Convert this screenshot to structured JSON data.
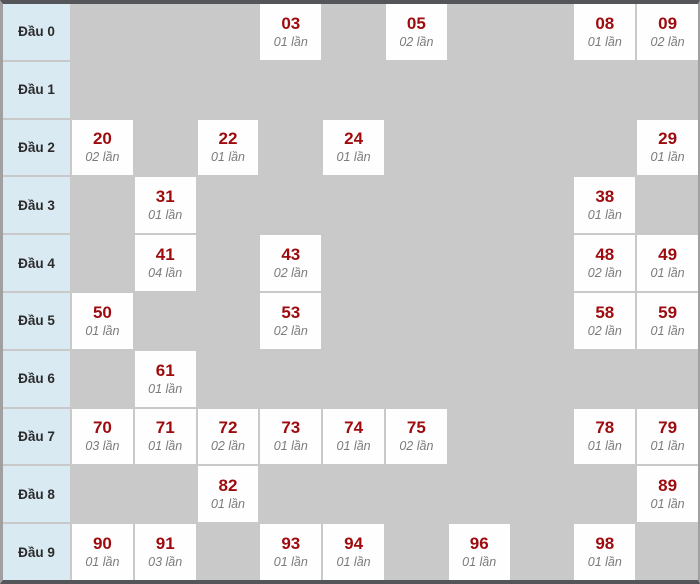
{
  "table": {
    "row_label_prefix": "Đầu",
    "frequency_suffix": "lần",
    "unit_columns": 10,
    "rows": [
      {
        "label": "Đầu 0",
        "cells": [
          {
            "col": 3,
            "number": "03",
            "freq": "01 lần"
          },
          {
            "col": 5,
            "number": "05",
            "freq": "02 lần"
          },
          {
            "col": 8,
            "number": "08",
            "freq": "01 lần"
          },
          {
            "col": 9,
            "number": "09",
            "freq": "02 lần"
          }
        ]
      },
      {
        "label": "Đầu 1",
        "cells": []
      },
      {
        "label": "Đầu 2",
        "cells": [
          {
            "col": 0,
            "number": "20",
            "freq": "02 lần"
          },
          {
            "col": 2,
            "number": "22",
            "freq": "01 lần"
          },
          {
            "col": 4,
            "number": "24",
            "freq": "01 lần"
          },
          {
            "col": 9,
            "number": "29",
            "freq": "01 lần"
          }
        ]
      },
      {
        "label": "Đầu 3",
        "cells": [
          {
            "col": 1,
            "number": "31",
            "freq": "01 lần"
          },
          {
            "col": 8,
            "number": "38",
            "freq": "01 lần"
          }
        ]
      },
      {
        "label": "Đầu 4",
        "cells": [
          {
            "col": 1,
            "number": "41",
            "freq": "04 lần"
          },
          {
            "col": 3,
            "number": "43",
            "freq": "02 lần"
          },
          {
            "col": 8,
            "number": "48",
            "freq": "02 lần"
          },
          {
            "col": 9,
            "number": "49",
            "freq": "01 lần"
          }
        ]
      },
      {
        "label": "Đầu 5",
        "cells": [
          {
            "col": 0,
            "number": "50",
            "freq": "01 lần"
          },
          {
            "col": 3,
            "number": "53",
            "freq": "02 lần"
          },
          {
            "col": 8,
            "number": "58",
            "freq": "02 lần"
          },
          {
            "col": 9,
            "number": "59",
            "freq": "01 lần"
          }
        ]
      },
      {
        "label": "Đầu 6",
        "cells": [
          {
            "col": 1,
            "number": "61",
            "freq": "01 lần"
          }
        ]
      },
      {
        "label": "Đầu 7",
        "cells": [
          {
            "col": 0,
            "number": "70",
            "freq": "03 lần"
          },
          {
            "col": 1,
            "number": "71",
            "freq": "01 lần"
          },
          {
            "col": 2,
            "number": "72",
            "freq": "02 lần"
          },
          {
            "col": 3,
            "number": "73",
            "freq": "01 lần"
          },
          {
            "col": 4,
            "number": "74",
            "freq": "01 lần"
          },
          {
            "col": 5,
            "number": "75",
            "freq": "02 lần"
          },
          {
            "col": 8,
            "number": "78",
            "freq": "01 lần"
          },
          {
            "col": 9,
            "number": "79",
            "freq": "01 lần"
          }
        ]
      },
      {
        "label": "Đầu 8",
        "cells": [
          {
            "col": 2,
            "number": "82",
            "freq": "01 lần"
          },
          {
            "col": 9,
            "number": "89",
            "freq": "01 lần"
          }
        ]
      },
      {
        "label": "Đầu 9",
        "cells": [
          {
            "col": 0,
            "number": "90",
            "freq": "01 lần"
          },
          {
            "col": 1,
            "number": "91",
            "freq": "03 lần"
          },
          {
            "col": 3,
            "number": "93",
            "freq": "01 lần"
          },
          {
            "col": 4,
            "number": "94",
            "freq": "01 lần"
          },
          {
            "col": 6,
            "number": "96",
            "freq": "01 lần"
          },
          {
            "col": 8,
            "number": "98",
            "freq": "01 lần"
          }
        ]
      }
    ]
  },
  "colors": {
    "background_gray": "#c9c9c9",
    "header_blue": "#d9eaf3",
    "cell_white": "#fefefe",
    "number_red": "#9e0b0e",
    "frequency_gray": "#7b7b7b",
    "frame_dark": "#55565a",
    "frame_side": "#a0a0a0"
  },
  "chart_data": {
    "type": "table",
    "title": "",
    "row_labels": [
      "Đầu 0",
      "Đầu 1",
      "Đầu 2",
      "Đầu 3",
      "Đầu 4",
      "Đầu 5",
      "Đầu 6",
      "Đầu 7",
      "Đầu 8",
      "Đầu 9"
    ],
    "entries": [
      {
        "number": "03",
        "times": 1
      },
      {
        "number": "05",
        "times": 2
      },
      {
        "number": "08",
        "times": 1
      },
      {
        "number": "09",
        "times": 2
      },
      {
        "number": "20",
        "times": 2
      },
      {
        "number": "22",
        "times": 1
      },
      {
        "number": "24",
        "times": 1
      },
      {
        "number": "29",
        "times": 1
      },
      {
        "number": "31",
        "times": 1
      },
      {
        "number": "38",
        "times": 1
      },
      {
        "number": "41",
        "times": 4
      },
      {
        "number": "43",
        "times": 2
      },
      {
        "number": "48",
        "times": 2
      },
      {
        "number": "49",
        "times": 1
      },
      {
        "number": "50",
        "times": 1
      },
      {
        "number": "53",
        "times": 2
      },
      {
        "number": "58",
        "times": 2
      },
      {
        "number": "59",
        "times": 1
      },
      {
        "number": "61",
        "times": 1
      },
      {
        "number": "70",
        "times": 3
      },
      {
        "number": "71",
        "times": 1
      },
      {
        "number": "72",
        "times": 2
      },
      {
        "number": "73",
        "times": 1
      },
      {
        "number": "74",
        "times": 1
      },
      {
        "number": "75",
        "times": 2
      },
      {
        "number": "78",
        "times": 1
      },
      {
        "number": "79",
        "times": 1
      },
      {
        "number": "82",
        "times": 1
      },
      {
        "number": "89",
        "times": 1
      },
      {
        "number": "90",
        "times": 1
      },
      {
        "number": "91",
        "times": 3
      },
      {
        "number": "93",
        "times": 1
      },
      {
        "number": "94",
        "times": 1
      },
      {
        "number": "96",
        "times": 1
      },
      {
        "number": "98",
        "times": 1
      }
    ]
  }
}
